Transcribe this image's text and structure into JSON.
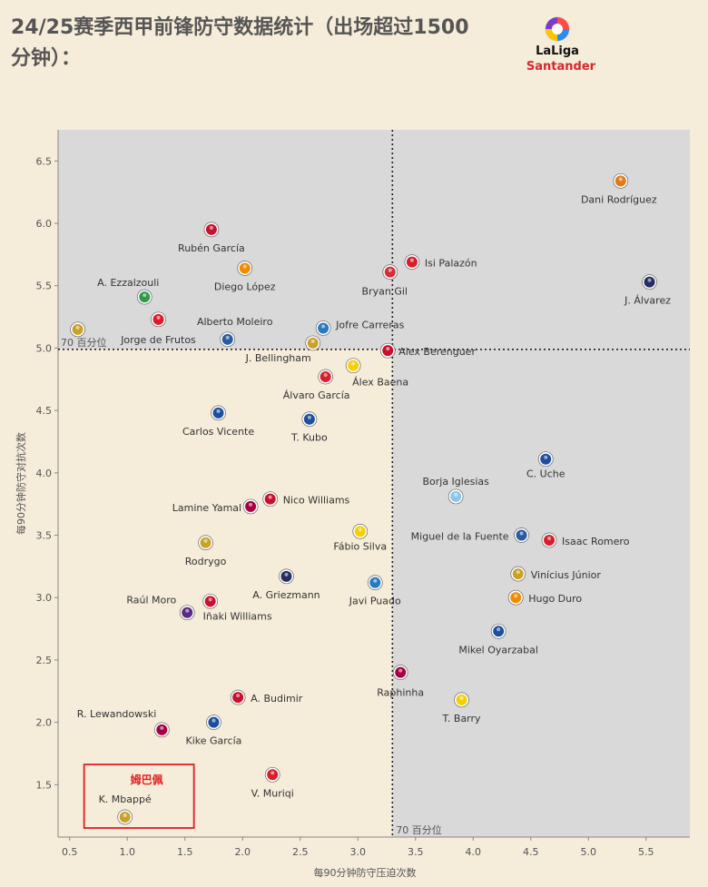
{
  "title": "24/25赛季西甲前锋防守数据统计（出场超过1500 分钟）：",
  "logo": {
    "brand": "LaLiga",
    "sponsor": "Santander",
    "icon": "laliga-ball-icon"
  },
  "chart_data": {
    "type": "scatter",
    "xlabel": "每90分钟防守压迫次数",
    "ylabel": "每90分钟防守对抗次数",
    "xlim": [
      0.4,
      5.88
    ],
    "ylim": [
      1.08,
      6.75
    ],
    "xticks": [
      0.5,
      1.0,
      1.5,
      2.0,
      2.5,
      3.0,
      3.5,
      4.0,
      4.5,
      5.0,
      5.5
    ],
    "yticks": [
      1.5,
      2.0,
      2.5,
      3.0,
      3.5,
      4.0,
      4.5,
      5.0,
      5.5,
      6.0,
      6.5
    ],
    "x_tick_labels": [
      "0.5",
      "1.0",
      "1.5",
      "2.0",
      "2.5",
      "3.0",
      "3.5",
      "4.0",
      "4.5",
      "5.0",
      "5.5"
    ],
    "y_tick_labels": [
      "1.5",
      "2.0",
      "2.5",
      "3.0",
      "3.5",
      "4.0",
      "4.5",
      "5.0",
      "5.5",
      "6.0",
      "6.5"
    ],
    "ref_x": 3.3,
    "ref_y": 4.99,
    "ref_x_label": "70 百分位",
    "ref_y_label": "70 百分位",
    "highlight": {
      "label": "姆巴佩",
      "player": "K. Mbappé",
      "color": "#e02020"
    },
    "grid": false,
    "colors": {
      "shade": "#d9d9d9",
      "background": "#f5ecd9",
      "ref_line": "#222222"
    },
    "points": [
      {
        "name": "Dani Rodríguez",
        "x": 5.28,
        "y": 6.34,
        "color": "#e07a1a"
      },
      {
        "name": "Rubén García",
        "x": 1.73,
        "y": 5.95,
        "color": "#c8102e"
      },
      {
        "name": "Isi Palazón",
        "x": 3.47,
        "y": 5.69,
        "color": "#d81e2a"
      },
      {
        "name": "Diego López",
        "x": 2.02,
        "y": 5.64,
        "color": "#f18a00"
      },
      {
        "name": "Bryan Gil",
        "x": 3.28,
        "y": 5.61,
        "color": "#d42e3a"
      },
      {
        "name": "A. Ezzalzouli",
        "x": 1.15,
        "y": 5.41,
        "color": "#2e9b4a"
      },
      {
        "name": "J. Álvarez",
        "x": 5.53,
        "y": 5.53,
        "color": "#272e61"
      },
      {
        "name": "Alberto Moleiro",
        "x": 1.87,
        "y": 5.07,
        "color": "#2a5aa0"
      },
      {
        "name": "Jorge de Frutos",
        "x": 1.27,
        "y": 5.23,
        "color": "#d81e2a"
      },
      {
        "name": "Jofre Carreras",
        "x": 2.7,
        "y": 5.16,
        "color": "#2a7ac0"
      },
      {
        "name": "J. Bellingham",
        "x": 2.61,
        "y": 5.04,
        "color": "#c9a227"
      },
      {
        "name": "Alex Berenguer",
        "x": 3.26,
        "y": 4.98,
        "color": "#c8102e"
      },
      {
        "name": "Álex Baena",
        "x": 2.96,
        "y": 4.86,
        "color": "#f5d000"
      },
      {
        "name": "Álvaro García",
        "x": 2.72,
        "y": 4.77,
        "color": "#d81e2a"
      },
      {
        "name": "Carlos Vicente",
        "x": 1.79,
        "y": 4.48,
        "color": "#1d4f9c"
      },
      {
        "name": "T. Kubo",
        "x": 2.58,
        "y": 4.43,
        "color": "#1d4f9c"
      },
      {
        "name": "C. Uche",
        "x": 4.63,
        "y": 4.11,
        "color": "#1d4f9c"
      },
      {
        "name": "Borja Iglesias",
        "x": 3.85,
        "y": 3.81,
        "color": "#8ac6e8"
      },
      {
        "name": "Nico Williams",
        "x": 2.24,
        "y": 3.79,
        "color": "#c8102e"
      },
      {
        "name": "Lamine Yamal",
        "x": 2.07,
        "y": 3.73,
        "color": "#a50044"
      },
      {
        "name": "Fábio Silva",
        "x": 3.02,
        "y": 3.53,
        "color": "#f5d000"
      },
      {
        "name": "Miguel de la Fuente",
        "x": 4.42,
        "y": 3.5,
        "color": "#2a5aa0"
      },
      {
        "name": "Isaac Romero",
        "x": 4.66,
        "y": 3.46,
        "color": "#d81e2a"
      },
      {
        "name": "Rodrygo",
        "x": 1.68,
        "y": 3.44,
        "color": "#c9a227"
      },
      {
        "name": "A. Griezmann",
        "x": 2.38,
        "y": 3.17,
        "color": "#272e61"
      },
      {
        "name": "Vinícius Júnior",
        "x": 4.39,
        "y": 3.19,
        "color": "#c9a227"
      },
      {
        "name": "Javi Puado",
        "x": 3.15,
        "y": 3.12,
        "color": "#2a7ac0"
      },
      {
        "name": "Hugo Duro",
        "x": 4.37,
        "y": 3.0,
        "color": "#f18a00"
      },
      {
        "name": "Raúl Moro",
        "x": 1.52,
        "y": 2.88,
        "color": "#5a2a82"
      },
      {
        "name": "Iñaki Williams",
        "x": 1.72,
        "y": 2.97,
        "color": "#c8102e"
      },
      {
        "name": "Mikel Oyarzabal",
        "x": 4.22,
        "y": 2.73,
        "color": "#1d4f9c"
      },
      {
        "name": "Raphinha",
        "x": 3.37,
        "y": 2.4,
        "color": "#a50044"
      },
      {
        "name": "A. Budimir",
        "x": 1.96,
        "y": 2.2,
        "color": "#c8102e"
      },
      {
        "name": "T. Barry",
        "x": 3.9,
        "y": 2.18,
        "color": "#f5d000"
      },
      {
        "name": "R. Lewandowski",
        "x": 1.3,
        "y": 1.94,
        "color": "#a50044"
      },
      {
        "name": "Kike García",
        "x": 1.75,
        "y": 2.0,
        "color": "#1d4f9c"
      },
      {
        "name": "V. Muriqi",
        "x": 2.26,
        "y": 1.58,
        "color": "#d81e2a"
      },
      {
        "name": "K. Mbappé",
        "x": 0.98,
        "y": 1.24,
        "color": "#c9a227"
      },
      {
        "name": "",
        "x": 0.57,
        "y": 5.15,
        "color": "#c9a227"
      }
    ]
  }
}
